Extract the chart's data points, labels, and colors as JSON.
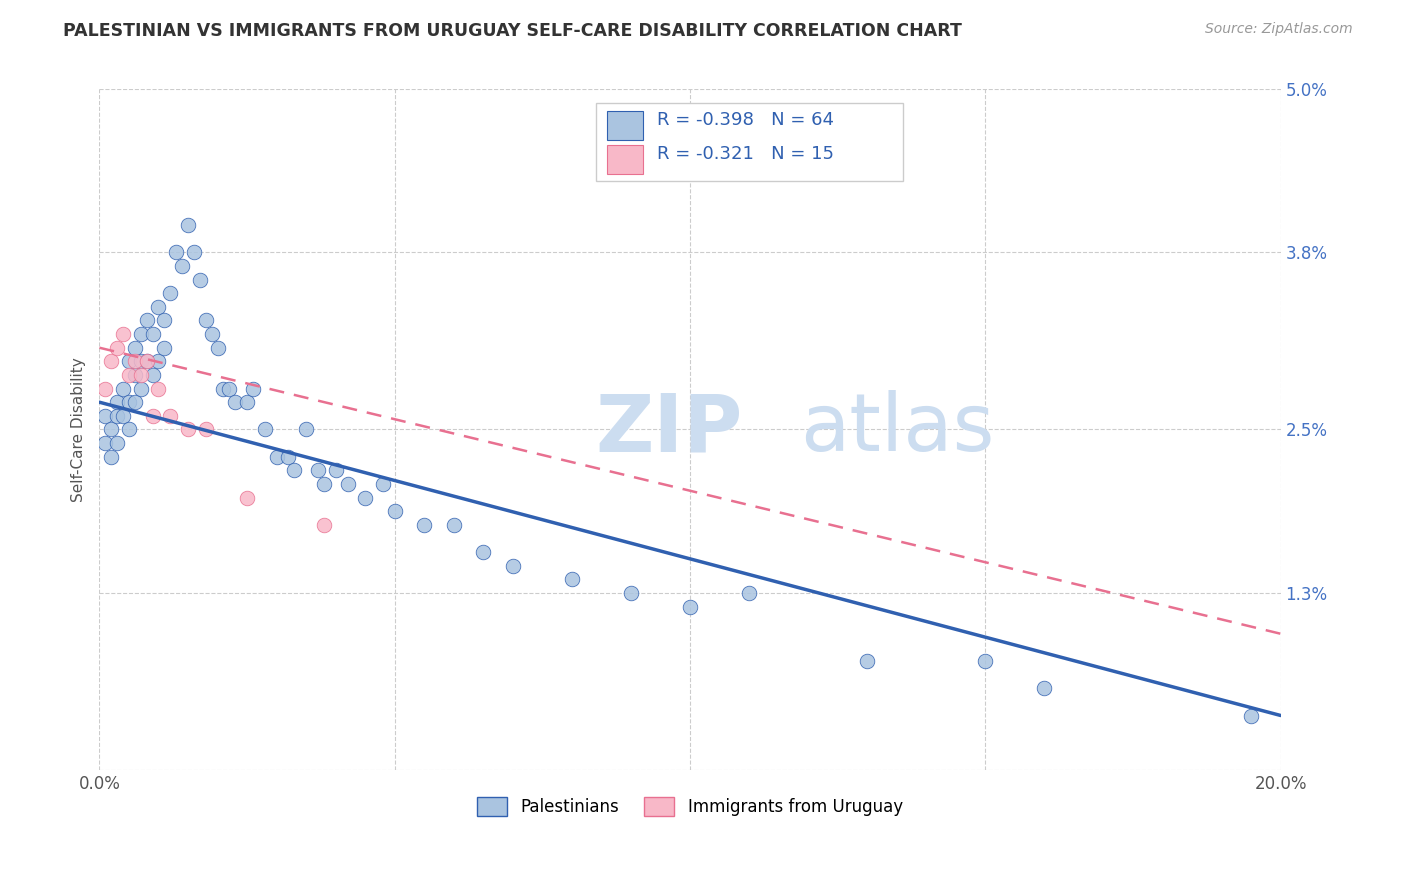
{
  "title": "PALESTINIAN VS IMMIGRANTS FROM URUGUAY SELF-CARE DISABILITY CORRELATION CHART",
  "source": "Source: ZipAtlas.com",
  "ylabel": "Self-Care Disability",
  "xlim": [
    0.0,
    0.2
  ],
  "ylim": [
    0.0,
    0.05
  ],
  "yticks": [
    0.0,
    0.013,
    0.025,
    0.038,
    0.05
  ],
  "ytick_labels": [
    "",
    "1.3%",
    "2.5%",
    "3.8%",
    "5.0%"
  ],
  "xticks": [
    0.0,
    0.05,
    0.1,
    0.15,
    0.2
  ],
  "xtick_labels": [
    "0.0%",
    "",
    "",
    "",
    "20.0%"
  ],
  "legend_label1": "Palestinians",
  "legend_label2": "Immigrants from Uruguay",
  "R1": -0.398,
  "N1": 64,
  "R2": -0.321,
  "N2": 15,
  "color1": "#aac4e0",
  "color1_line": "#3060b0",
  "color2": "#f8b8c8",
  "color2_line": "#e87090",
  "background_color": "#ffffff",
  "grid_color": "#cccccc",
  "palestinians_x": [
    0.001,
    0.001,
    0.002,
    0.002,
    0.003,
    0.003,
    0.003,
    0.004,
    0.004,
    0.005,
    0.005,
    0.005,
    0.006,
    0.006,
    0.006,
    0.007,
    0.007,
    0.007,
    0.008,
    0.008,
    0.009,
    0.009,
    0.01,
    0.01,
    0.011,
    0.011,
    0.012,
    0.013,
    0.014,
    0.015,
    0.016,
    0.017,
    0.018,
    0.019,
    0.02,
    0.021,
    0.022,
    0.023,
    0.025,
    0.026,
    0.028,
    0.03,
    0.032,
    0.033,
    0.035,
    0.037,
    0.038,
    0.04,
    0.042,
    0.045,
    0.048,
    0.05,
    0.055,
    0.06,
    0.065,
    0.07,
    0.08,
    0.09,
    0.1,
    0.11,
    0.13,
    0.15,
    0.16,
    0.195
  ],
  "palestinians_y": [
    0.026,
    0.024,
    0.025,
    0.023,
    0.027,
    0.026,
    0.024,
    0.028,
    0.026,
    0.03,
    0.027,
    0.025,
    0.031,
    0.029,
    0.027,
    0.032,
    0.03,
    0.028,
    0.033,
    0.03,
    0.032,
    0.029,
    0.034,
    0.03,
    0.033,
    0.031,
    0.035,
    0.038,
    0.037,
    0.04,
    0.038,
    0.036,
    0.033,
    0.032,
    0.031,
    0.028,
    0.028,
    0.027,
    0.027,
    0.028,
    0.025,
    0.023,
    0.023,
    0.022,
    0.025,
    0.022,
    0.021,
    0.022,
    0.021,
    0.02,
    0.021,
    0.019,
    0.018,
    0.018,
    0.016,
    0.015,
    0.014,
    0.013,
    0.012,
    0.013,
    0.008,
    0.008,
    0.006,
    0.004
  ],
  "uruguay_x": [
    0.001,
    0.002,
    0.003,
    0.004,
    0.005,
    0.006,
    0.007,
    0.008,
    0.009,
    0.01,
    0.012,
    0.015,
    0.018,
    0.025,
    0.038
  ],
  "uruguay_y": [
    0.028,
    0.03,
    0.031,
    0.032,
    0.029,
    0.03,
    0.029,
    0.03,
    0.026,
    0.028,
    0.026,
    0.025,
    0.025,
    0.02,
    0.018
  ],
  "line1_x": [
    0.0,
    0.2
  ],
  "line1_y": [
    0.027,
    0.004
  ],
  "line2_x": [
    0.0,
    0.2
  ],
  "line2_y": [
    0.031,
    0.01
  ]
}
